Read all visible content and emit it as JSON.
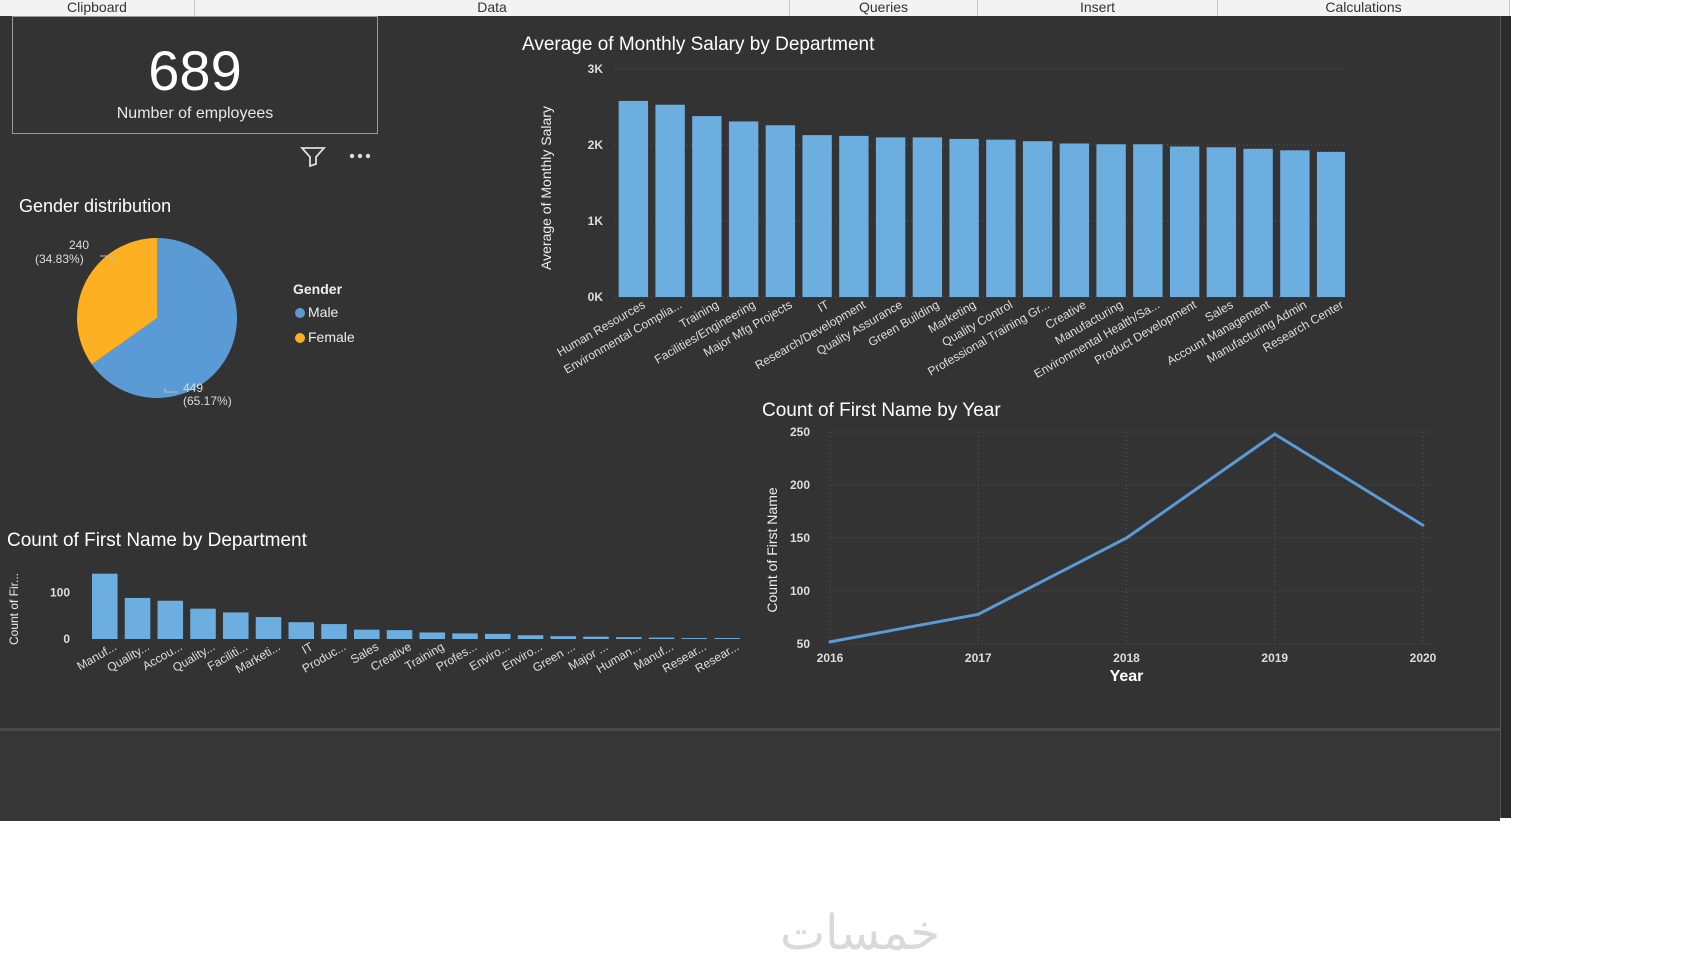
{
  "ribbon": {
    "groups": [
      "Clipboard",
      "Data",
      "Queries",
      "Insert",
      "Calculations"
    ]
  },
  "kpi": {
    "value": "689",
    "label": "Number of employees"
  },
  "visual_icons": [
    "filter-icon",
    "more-options-icon"
  ],
  "colors": {
    "male": "#5B9BD5",
    "female": "#FDB022",
    "bar": "#6CAEE0",
    "line": "#5B9BD5",
    "background": "#333333"
  },
  "watermark": "خمسات",
  "charts": {
    "gender": {
      "title": "Gender distribution",
      "legend_title": "Gender",
      "female_label_value": "240",
      "female_label_pct": "(34.83%)",
      "male_label_value": "449",
      "male_label_pct": "(65.17%)"
    },
    "salary": {
      "title": "Average of Monthly Salary by Department",
      "ylabel": "Average of Monthly Salary"
    },
    "dept_count": {
      "title": "Count of First Name by Department",
      "ylabel": "Count of Fir..."
    },
    "year_count": {
      "title": "Count of First Name by Year",
      "ylabel": "Count of First Name",
      "xlabel": "Year"
    }
  },
  "chart_data": [
    {
      "type": "pie",
      "title": "Gender distribution",
      "legend_title": "Gender",
      "categories": [
        "Male",
        "Female"
      ],
      "values": [
        449,
        240
      ],
      "labels": [
        "449 (65.17%)",
        "240 (34.83%)"
      ],
      "legend_position": "right"
    },
    {
      "type": "bar",
      "title": "Average of Monthly Salary by Department",
      "ylabel": "Average of Monthly Salary",
      "xlabel": "",
      "ylim": [
        0,
        3000
      ],
      "yticks": [
        "0K",
        "1K",
        "2K",
        "3K"
      ],
      "categories": [
        "Human Resources",
        "Environmental Complia...",
        "Training",
        "Facilities/Engineering",
        "Major Mfg Projects",
        "IT",
        "Research/Development",
        "Quality Assurance",
        "Green Building",
        "Marketing",
        "Quality Control",
        "Professional Training Gr...",
        "Creative",
        "Manufacturing",
        "Environmental Health/Sa...",
        "Product Development",
        "Sales",
        "Account Management",
        "Manufacturing Admin",
        "Research Center"
      ],
      "values": [
        2580,
        2530,
        2380,
        2310,
        2260,
        2130,
        2120,
        2100,
        2100,
        2080,
        2070,
        2050,
        2020,
        2010,
        2010,
        1980,
        1970,
        1950,
        1930,
        1910
      ]
    },
    {
      "type": "bar",
      "title": "Count of First Name by Department",
      "ylabel": "Count of Fir...",
      "xlabel": "",
      "ylim": [
        0,
        150
      ],
      "yticks": [
        "0",
        "100"
      ],
      "categories": [
        "Manuf...",
        "Quality...",
        "Accou...",
        "Quality...",
        "Faciliti...",
        "Marketi...",
        "IT",
        "Produc...",
        "Sales",
        "Creative",
        "Training",
        "Profes...",
        "Enviro...",
        "Enviro...",
        "Green ...",
        "Major ...",
        "Human...",
        "Manuf...",
        "Resear...",
        "Resear..."
      ],
      "values": [
        140,
        88,
        82,
        65,
        57,
        47,
        36,
        32,
        20,
        19,
        14,
        12,
        11,
        8,
        6,
        5,
        4,
        3,
        2,
        2
      ]
    },
    {
      "type": "line",
      "title": "Count of First Name by Year",
      "xlabel": "Year",
      "ylabel": "Count of First Name",
      "x": [
        2016,
        2017,
        2018,
        2019,
        2020
      ],
      "values": [
        52,
        78,
        150,
        248,
        162
      ],
      "ylim": [
        50,
        250
      ],
      "yticks": [
        50,
        100,
        150,
        200,
        250
      ]
    }
  ]
}
